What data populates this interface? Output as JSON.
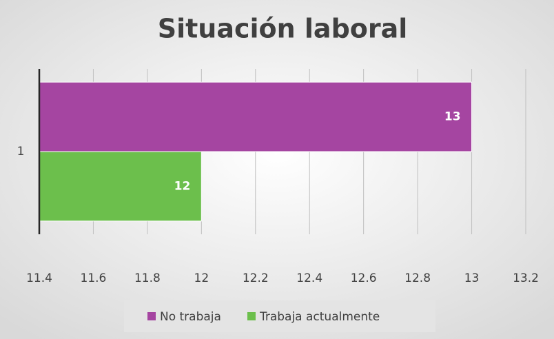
{
  "chart_data": {
    "type": "barh",
    "title": "Situación laboral",
    "categories": [
      "1"
    ],
    "series": [
      {
        "name": "No trabaja",
        "color": "#a545a1",
        "values": [
          13
        ]
      },
      {
        "name": "Trabaja actualmente",
        "color": "#6cbf4c",
        "values": [
          12
        ]
      }
    ],
    "xlim": [
      11.4,
      13.2
    ],
    "xticks": [
      11.4,
      11.6,
      11.8,
      12,
      12.2,
      12.4,
      12.6,
      12.8,
      13,
      13.2
    ],
    "grid": true,
    "legend": "bottom"
  }
}
